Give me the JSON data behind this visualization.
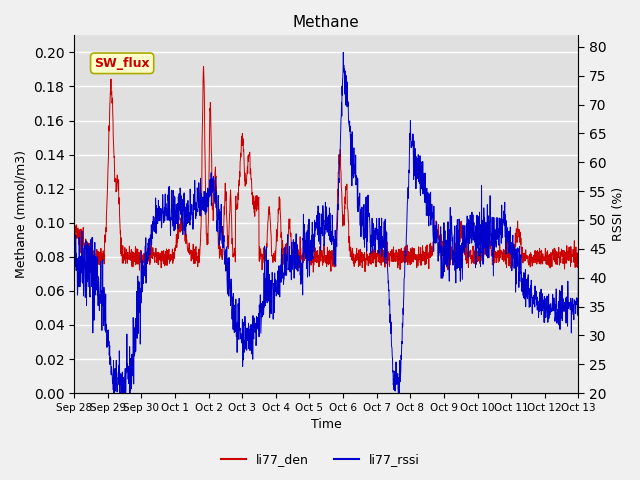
{
  "title": "Methane",
  "xlabel": "Time",
  "ylabel_left": "Methane (mmol/m3)",
  "ylabel_right": "RSSI (%)",
  "ylim_left": [
    0.0,
    0.21
  ],
  "ylim_right": [
    20,
    82
  ],
  "yticks_left": [
    0.0,
    0.02,
    0.04,
    0.06,
    0.08,
    0.1,
    0.12,
    0.14,
    0.16,
    0.18,
    0.2
  ],
  "yticks_right": [
    20,
    25,
    30,
    35,
    40,
    45,
    50,
    55,
    60,
    65,
    70,
    75,
    80
  ],
  "bg_color": "#e0e0e0",
  "fig_color": "#f0f0f0",
  "grid_color": "#ffffff",
  "line_color_den": "#cc0000",
  "line_color_rssi": "#0000cc",
  "legend_labels": [
    "li77_den",
    "li77_rssi"
  ],
  "sw_flux_box_color": "#ffffcc",
  "sw_flux_text_color": "#cc0000",
  "xtick_labels": [
    "Sep 28",
    "Sep 29",
    "Sep 30",
    "Oct 1",
    "Oct 2",
    "Oct 3",
    "Oct 4",
    "Oct 5",
    "Oct 6",
    "Oct 7",
    "Oct 8",
    "Oct 9",
    "Oct 10",
    "Oct 11",
    "Oct 12",
    "Oct 13"
  ],
  "num_points": 2000
}
